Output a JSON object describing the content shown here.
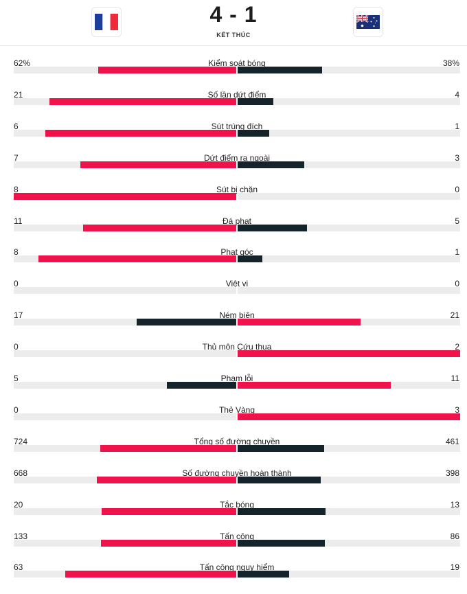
{
  "match": {
    "score": "4 - 1",
    "status": "KẾT THÚC",
    "home_flag": "france-flag-icon",
    "away_flag": "australia-flag-icon"
  },
  "colors": {
    "leader": "#f0124a",
    "trailer": "#15232b",
    "track": "#ececec"
  },
  "stats": [
    {
      "label": "Kiểm soát bóng",
      "home": "62%",
      "away": "38%",
      "home_value": 62,
      "away_value": 38
    },
    {
      "label": "Số lần dứt điểm",
      "home": "21",
      "away": "4",
      "home_value": 21,
      "away_value": 4
    },
    {
      "label": "Sút trúng đích",
      "home": "6",
      "away": "1",
      "home_value": 6,
      "away_value": 1
    },
    {
      "label": "Dứt điểm ra ngoài",
      "home": "7",
      "away": "3",
      "home_value": 7,
      "away_value": 3
    },
    {
      "label": "Sút bị chặn",
      "home": "8",
      "away": "0",
      "home_value": 8,
      "away_value": 0
    },
    {
      "label": "Đá phạt",
      "home": "11",
      "away": "5",
      "home_value": 11,
      "away_value": 5
    },
    {
      "label": "Phạt góc",
      "home": "8",
      "away": "1",
      "home_value": 8,
      "away_value": 1
    },
    {
      "label": "Việt vị",
      "home": "0",
      "away": "0",
      "home_value": 0,
      "away_value": 0
    },
    {
      "label": "Ném biên",
      "home": "17",
      "away": "21",
      "home_value": 17,
      "away_value": 21
    },
    {
      "label": "Thủ môn Cứu thua",
      "home": "0",
      "away": "2",
      "home_value": 0,
      "away_value": 2
    },
    {
      "label": "Phạm lỗi",
      "home": "5",
      "away": "11",
      "home_value": 5,
      "away_value": 11
    },
    {
      "label": "Thẻ Vàng",
      "home": "0",
      "away": "3",
      "home_value": 0,
      "away_value": 3
    },
    {
      "label": "Tổng số đường chuyền",
      "home": "724",
      "away": "461",
      "home_value": 724,
      "away_value": 461
    },
    {
      "label": "Số đường chuyền hoàn thành",
      "home": "668",
      "away": "398",
      "home_value": 668,
      "away_value": 398
    },
    {
      "label": "Tắc bóng",
      "home": "20",
      "away": "13",
      "home_value": 20,
      "away_value": 13
    },
    {
      "label": "Tấn công",
      "home": "133",
      "away": "86",
      "home_value": 133,
      "away_value": 86
    },
    {
      "label": "Tấn công nguy hiểm",
      "home": "63",
      "away": "19",
      "home_value": 63,
      "away_value": 19
    }
  ]
}
